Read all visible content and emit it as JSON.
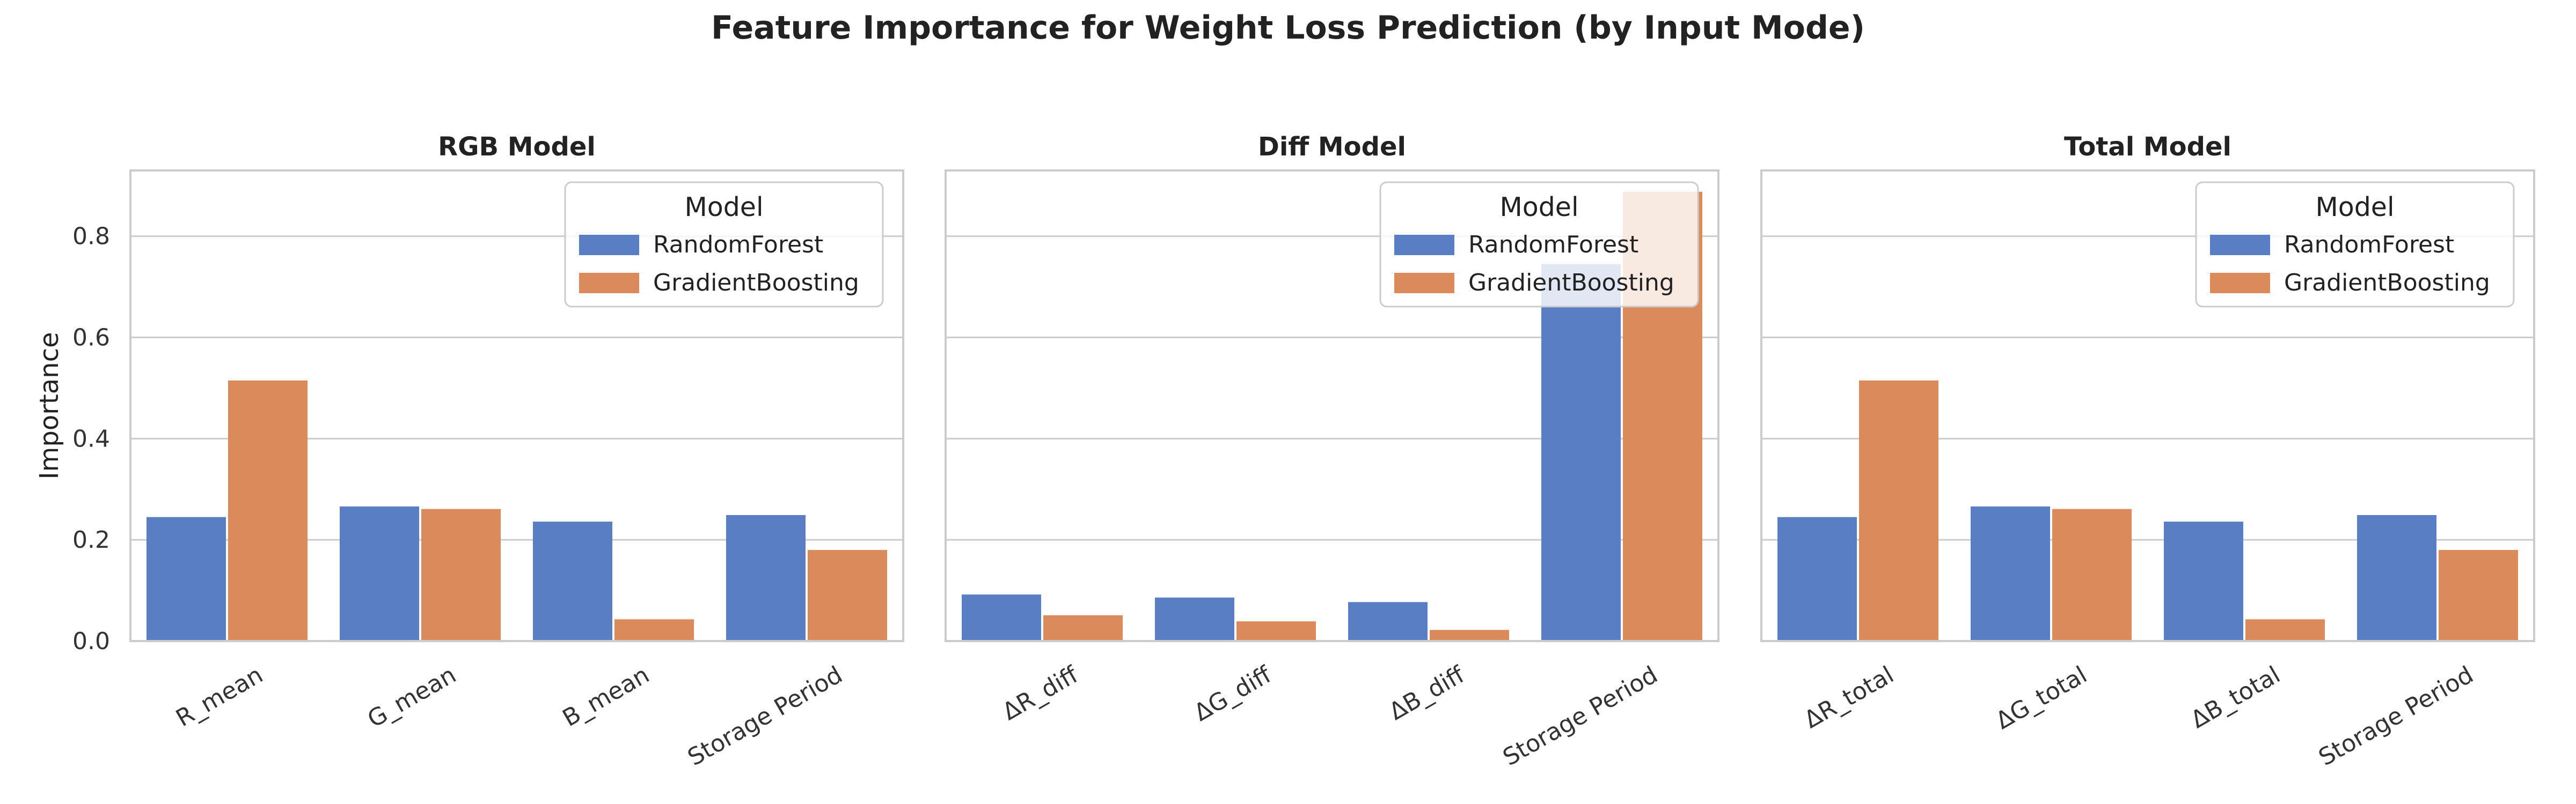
{
  "title": "Feature Importance for Weight Loss Prediction (by Input Mode)",
  "chart_data": [
    {
      "type": "bar",
      "title": "RGB Model",
      "xlabel": "",
      "ylabel": "Importance",
      "ylim": [
        0,
        0.93
      ],
      "yticks": [
        "0.0",
        "0.2",
        "0.4",
        "0.6",
        "0.8"
      ],
      "grid": true,
      "legend_title": "Model",
      "legend_position": "top-right",
      "categories": [
        "R_mean",
        "G_mean",
        "B_mean",
        "Storage Period"
      ],
      "series": [
        {
          "name": "RandomForest",
          "color": "#5a7ec4",
          "values": [
            0.245,
            0.266,
            0.236,
            0.249
          ]
        },
        {
          "name": "GradientBoosting",
          "color": "#db8a5c",
          "values": [
            0.515,
            0.261,
            0.043,
            0.18
          ]
        }
      ]
    },
    {
      "type": "bar",
      "title": "Diff Model",
      "xlabel": "",
      "ylabel": "",
      "ylim": [
        0,
        0.93
      ],
      "grid": true,
      "legend_title": "Model",
      "legend_position": "top-right",
      "categories": [
        "ΔR_diff",
        "ΔG_diff",
        "ΔB_diff",
        "Storage Period"
      ],
      "series": [
        {
          "name": "RandomForest",
          "color": "#5a7ec4",
          "values": [
            0.092,
            0.086,
            0.077,
            0.745
          ]
        },
        {
          "name": "GradientBoosting",
          "color": "#db8a5c",
          "values": [
            0.051,
            0.039,
            0.022,
            0.888
          ]
        }
      ]
    },
    {
      "type": "bar",
      "title": "Total Model",
      "xlabel": "",
      "ylabel": "",
      "ylim": [
        0,
        0.93
      ],
      "grid": true,
      "legend_title": "Model",
      "legend_position": "top-right",
      "categories": [
        "ΔR_total",
        "ΔG_total",
        "ΔB_total",
        "Storage Period"
      ],
      "series": [
        {
          "name": "RandomForest",
          "color": "#5a7ec4",
          "values": [
            0.245,
            0.266,
            0.236,
            0.249
          ]
        },
        {
          "name": "GradientBoosting",
          "color": "#db8a5c",
          "values": [
            0.515,
            0.261,
            0.043,
            0.18
          ]
        }
      ]
    }
  ]
}
